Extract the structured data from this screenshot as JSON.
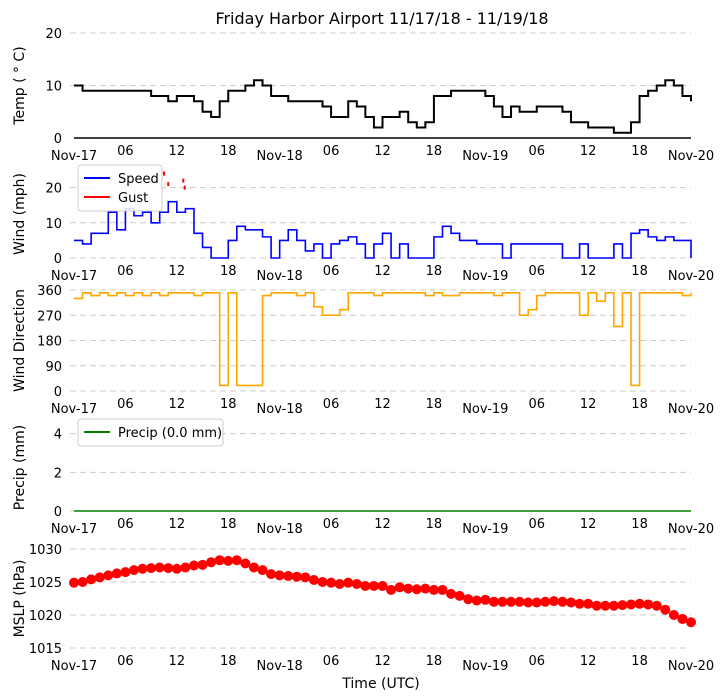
{
  "chart_data": [
    {
      "type": "line",
      "title": "Friday Harbor Airport 11/17/18 - 11/19/18",
      "ylabel": "Temp ( ° C)",
      "ylim": [
        0,
        20
      ],
      "yticks": [
        0,
        10,
        20
      ],
      "color": "#000000",
      "grid": true,
      "series": [
        {
          "values": [
            10,
            9,
            9,
            9,
            9,
            9,
            9,
            9,
            9,
            8,
            8,
            7,
            8,
            8,
            7,
            5,
            4,
            7,
            9,
            9,
            10,
            11,
            10,
            8,
            8,
            7,
            7,
            7,
            7,
            6,
            4,
            4,
            7,
            6,
            4,
            2,
            4,
            4,
            5,
            3,
            2,
            3,
            8,
            8,
            9,
            9,
            9,
            9,
            8,
            6,
            4,
            6,
            5,
            5,
            6,
            6,
            6,
            5,
            3,
            3,
            2,
            2,
            2,
            1,
            1,
            3,
            8,
            9,
            10,
            11,
            10,
            8,
            7
          ]
        }
      ]
    },
    {
      "type": "line",
      "ylabel": "Wind (mph)",
      "ylim": [
        0,
        25
      ],
      "yticks": [
        0,
        10,
        20
      ],
      "grid": true,
      "legend": "top-left",
      "series": [
        {
          "name": "Speed",
          "color": "#0000ff",
          "values": [
            5,
            4,
            7,
            7,
            13,
            8,
            14,
            12,
            13,
            10,
            13,
            16,
            13,
            14,
            7,
            3,
            0,
            0,
            5,
            9,
            8,
            8,
            6,
            0,
            5,
            8,
            5,
            2,
            4,
            0,
            4,
            5,
            6,
            4,
            0,
            4,
            7,
            0,
            4,
            0,
            0,
            0,
            6,
            9,
            7,
            5,
            5,
            4,
            4,
            4,
            0,
            4,
            4,
            4,
            4,
            4,
            4,
            0,
            0,
            4,
            0,
            0,
            0,
            4,
            0,
            7,
            8,
            6,
            5,
            6,
            5,
            5,
            0
          ]
        },
        {
          "name": "Gust",
          "color": "#ff0000",
          "points": [
            [
              "2018-11-17T10:30",
              24
            ],
            [
              "2018-11-17T11:00",
              21
            ],
            [
              "2018-11-17T12:45",
              22
            ],
            [
              "2018-11-17T12:55",
              20
            ]
          ]
        }
      ]
    },
    {
      "type": "line",
      "ylabel": "Wind Direction",
      "ylim": [
        0,
        360
      ],
      "yticks": [
        0,
        90,
        180,
        270,
        360
      ],
      "color": "#ffa500",
      "grid": true,
      "series": [
        {
          "values": [
            330,
            350,
            340,
            350,
            340,
            350,
            340,
            350,
            340,
            350,
            340,
            350,
            350,
            350,
            340,
            350,
            350,
            20,
            350,
            20,
            20,
            20,
            340,
            350,
            350,
            350,
            340,
            350,
            300,
            270,
            270,
            290,
            350,
            350,
            350,
            340,
            350,
            350,
            350,
            350,
            350,
            340,
            350,
            340,
            340,
            350,
            350,
            350,
            350,
            340,
            350,
            350,
            270,
            290,
            340,
            350,
            350,
            350,
            350,
            270,
            350,
            320,
            350,
            230,
            350,
            20,
            350,
            350,
            350,
            350,
            350,
            340,
            350
          ]
        }
      ]
    },
    {
      "type": "line",
      "ylabel": "Precip (mm)",
      "ylim": [
        0,
        4.5
      ],
      "yticks": [
        0,
        2,
        4
      ],
      "grid": true,
      "legend": "top-left",
      "series": [
        {
          "name": "Precip (0.0 mm)",
          "color": "#008000",
          "values": [
            0,
            0,
            0,
            0,
            0,
            0,
            0,
            0,
            0,
            0,
            0,
            0,
            0,
            0,
            0,
            0,
            0,
            0,
            0,
            0,
            0,
            0,
            0,
            0,
            0,
            0,
            0,
            0,
            0,
            0,
            0,
            0,
            0,
            0,
            0,
            0,
            0,
            0,
            0,
            0,
            0,
            0,
            0,
            0,
            0,
            0,
            0,
            0,
            0,
            0,
            0,
            0,
            0,
            0,
            0,
            0,
            0,
            0,
            0,
            0,
            0,
            0,
            0,
            0,
            0,
            0,
            0,
            0,
            0,
            0,
            0,
            0,
            0
          ]
        }
      ]
    },
    {
      "type": "scatter",
      "ylabel": "MSLP (hPa)",
      "xlabel": "Time (UTC)",
      "ylim": [
        1015,
        1030
      ],
      "yticks": [
        1015,
        1020,
        1025,
        1030
      ],
      "color": "#ff0000",
      "grid": true,
      "series": [
        {
          "values": [
            1024.9,
            1025.0,
            1025.4,
            1025.7,
            1026.0,
            1026.3,
            1026.5,
            1026.8,
            1027.0,
            1027.1,
            1027.2,
            1027.1,
            1027.0,
            1027.2,
            1027.5,
            1027.6,
            1028.0,
            1028.3,
            1028.2,
            1028.3,
            1027.8,
            1027.2,
            1026.8,
            1026.2,
            1026.0,
            1025.9,
            1025.8,
            1025.7,
            1025.3,
            1025.0,
            1024.9,
            1024.7,
            1024.9,
            1024.7,
            1024.4,
            1024.4,
            1024.4,
            1023.8,
            1024.2,
            1024.0,
            1023.9,
            1024.0,
            1023.8,
            1023.8,
            1023.2,
            1022.9,
            1022.4,
            1022.2,
            1022.3,
            1022.0,
            1022.0,
            1022.0,
            1022.0,
            1021.9,
            1021.9,
            1022.0,
            1022.1,
            1022.0,
            1021.9,
            1021.7,
            1021.7,
            1021.4,
            1021.4,
            1021.4,
            1021.5,
            1021.6,
            1021.7,
            1021.6,
            1021.4,
            1020.8,
            1020.0,
            1019.4,
            1018.9
          ]
        }
      ]
    }
  ],
  "x_range": [
    "2018-11-17T00:00",
    "2018-11-20T00:00"
  ],
  "x_interval": "1 hour",
  "x_ticks": [
    "Nov-17",
    "06",
    "12",
    "18",
    "Nov-18",
    "06",
    "12",
    "18",
    "Nov-19",
    "06",
    "12",
    "18",
    "Nov-20"
  ],
  "gridline_color": "#cccccc"
}
